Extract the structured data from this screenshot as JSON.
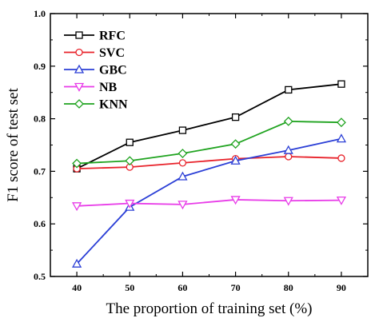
{
  "chart_data": {
    "type": "line",
    "x": [
      40,
      50,
      60,
      70,
      80,
      90
    ],
    "xlabel": "The proportion of training set (%)",
    "ylabel": "F1 score of test set",
    "xlim": [
      35,
      95
    ],
    "ylim": [
      0.5,
      1.0
    ],
    "xticks": [
      "40",
      "50",
      "60",
      "70",
      "80",
      "90"
    ],
    "yticks": [
      "0.5",
      "0.6",
      "0.7",
      "0.8",
      "0.9",
      "1.0"
    ],
    "grid": false,
    "legend_position": "top-left",
    "series": [
      {
        "name": "RFC",
        "color": "#000000",
        "marker": "square",
        "values": [
          0.705,
          0.755,
          0.778,
          0.803,
          0.855,
          0.866
        ]
      },
      {
        "name": "SVC",
        "color": "#e8222a",
        "marker": "circle",
        "values": [
          0.705,
          0.708,
          0.716,
          0.724,
          0.728,
          0.725
        ]
      },
      {
        "name": "GBC",
        "color": "#2b3fd6",
        "marker": "triangle-up",
        "values": [
          0.524,
          0.632,
          0.69,
          0.72,
          0.74,
          0.762
        ]
      },
      {
        "name": "NB",
        "color": "#e83ce8",
        "marker": "triangle-down",
        "values": [
          0.634,
          0.639,
          0.637,
          0.646,
          0.644,
          0.645
        ]
      },
      {
        "name": "KNN",
        "color": "#1fa31f",
        "marker": "diamond",
        "values": [
          0.715,
          0.72,
          0.734,
          0.752,
          0.795,
          0.793
        ]
      }
    ]
  }
}
